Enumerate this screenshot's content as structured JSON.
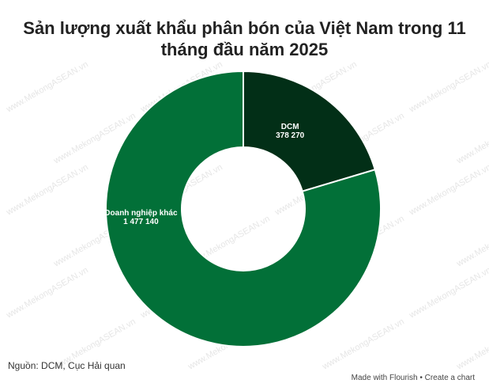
{
  "chart_data": {
    "type": "donut",
    "title": "Sản lượng xuất khẩu phân bón của Việt Nam trong 11 tháng đầu năm 2025",
    "categories": [
      "DCM",
      "Doanh nghiệp khác"
    ],
    "values": [
      378270,
      1477140
    ],
    "value_labels": [
      "378 270",
      "1 477 140"
    ],
    "colors": [
      "#022f17",
      "#027038"
    ],
    "source": "Nguồn: DCM, Cục Hải quan",
    "footer": "Made with Flourish • Create a chart",
    "watermark": "www.MekongASEAN.vn"
  }
}
